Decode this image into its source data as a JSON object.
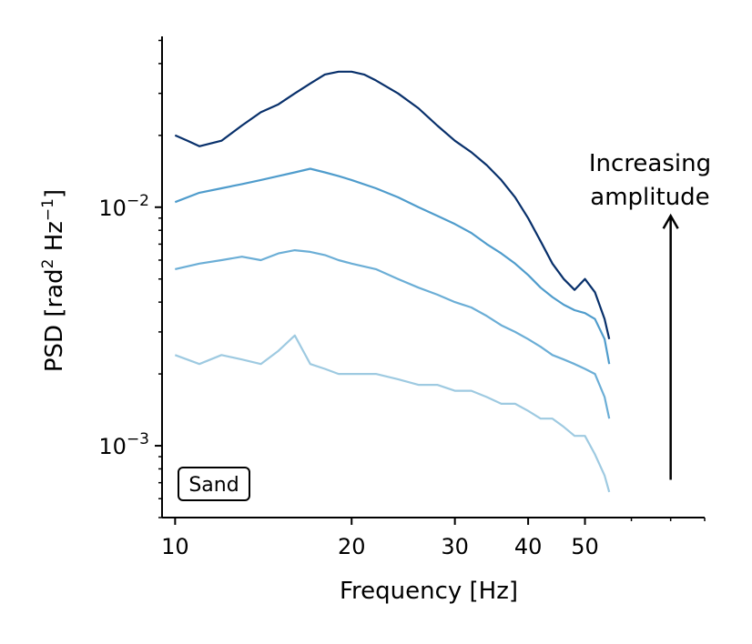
{
  "chart_data": {
    "type": "line",
    "xscale": "log",
    "yscale": "log",
    "xlim": [
      9.5,
      80
    ],
    "ylim": [
      0.0005,
      0.052
    ],
    "xticks": [
      10,
      20,
      30,
      40,
      50
    ],
    "xtick_labels": [
      "10",
      "20",
      "30",
      "40",
      "50"
    ],
    "yticks": [
      0.001,
      0.01
    ],
    "ytick_labels": [
      {
        "base": "10",
        "exp": "−3"
      },
      {
        "base": "10",
        "exp": "−2"
      }
    ],
    "xlabel": "Frequency [Hz]",
    "ylabel": {
      "pre": "PSD [rad",
      "sup1": "2",
      "mid": " Hz",
      "sup2": "−1",
      "post": "]"
    },
    "annotation": {
      "line1": "Increasing",
      "line2": "amplitude"
    },
    "arrow": {
      "x": 70,
      "y_from": 0.00072,
      "y_to": 0.0092
    },
    "inset_label": "Sand",
    "grid": false,
    "series": [
      {
        "color": "#9ecae1",
        "x": [
          10,
          11,
          12,
          13,
          14,
          15,
          16,
          17,
          18,
          19,
          20,
          22,
          24,
          26,
          28,
          30,
          32,
          34,
          36,
          38,
          40,
          42,
          44,
          46,
          48,
          50,
          52,
          54,
          55
        ],
        "y": [
          0.0024,
          0.0022,
          0.0024,
          0.0023,
          0.0022,
          0.0025,
          0.0029,
          0.0022,
          0.0021,
          0.002,
          0.002,
          0.002,
          0.0019,
          0.0018,
          0.0018,
          0.0017,
          0.0017,
          0.0016,
          0.0015,
          0.0015,
          0.0014,
          0.0013,
          0.0013,
          0.0012,
          0.0011,
          0.0011,
          0.00092,
          0.00075,
          0.00064
        ]
      },
      {
        "color": "#6baed6",
        "x": [
          10,
          11,
          12,
          13,
          14,
          15,
          16,
          17,
          18,
          19,
          20,
          22,
          24,
          26,
          28,
          30,
          32,
          34,
          36,
          38,
          40,
          42,
          44,
          46,
          48,
          50,
          52,
          54,
          55
        ],
        "y": [
          0.0055,
          0.0058,
          0.006,
          0.0062,
          0.006,
          0.0064,
          0.0066,
          0.0065,
          0.0063,
          0.006,
          0.0058,
          0.0055,
          0.005,
          0.0046,
          0.0043,
          0.004,
          0.0038,
          0.0035,
          0.0032,
          0.003,
          0.0028,
          0.0026,
          0.0024,
          0.0023,
          0.0022,
          0.0021,
          0.002,
          0.0016,
          0.0013
        ]
      },
      {
        "color": "#4f9ccc",
        "x": [
          10,
          11,
          12,
          13,
          14,
          15,
          16,
          17,
          18,
          19,
          20,
          22,
          24,
          26,
          28,
          30,
          32,
          34,
          36,
          38,
          40,
          42,
          44,
          46,
          48,
          50,
          52,
          54,
          55
        ],
        "y": [
          0.0105,
          0.0115,
          0.012,
          0.0125,
          0.013,
          0.0135,
          0.014,
          0.0145,
          0.014,
          0.0135,
          0.013,
          0.012,
          0.011,
          0.01,
          0.0092,
          0.0085,
          0.0078,
          0.007,
          0.0064,
          0.0058,
          0.0052,
          0.0046,
          0.0042,
          0.0039,
          0.0037,
          0.0036,
          0.0034,
          0.0028,
          0.0022
        ]
      },
      {
        "color": "#08306b",
        "x": [
          10,
          10.5,
          11,
          12,
          13,
          14,
          15,
          16,
          17,
          18,
          19,
          20,
          21,
          22,
          24,
          26,
          28,
          30,
          32,
          34,
          36,
          38,
          40,
          42,
          44,
          46,
          48,
          50,
          52,
          54,
          55
        ],
        "y": [
          0.02,
          0.019,
          0.018,
          0.019,
          0.022,
          0.025,
          0.027,
          0.03,
          0.033,
          0.036,
          0.037,
          0.037,
          0.036,
          0.034,
          0.03,
          0.026,
          0.022,
          0.019,
          0.017,
          0.015,
          0.013,
          0.011,
          0.009,
          0.0072,
          0.0058,
          0.005,
          0.0045,
          0.005,
          0.0044,
          0.0034,
          0.0028
        ]
      }
    ]
  }
}
